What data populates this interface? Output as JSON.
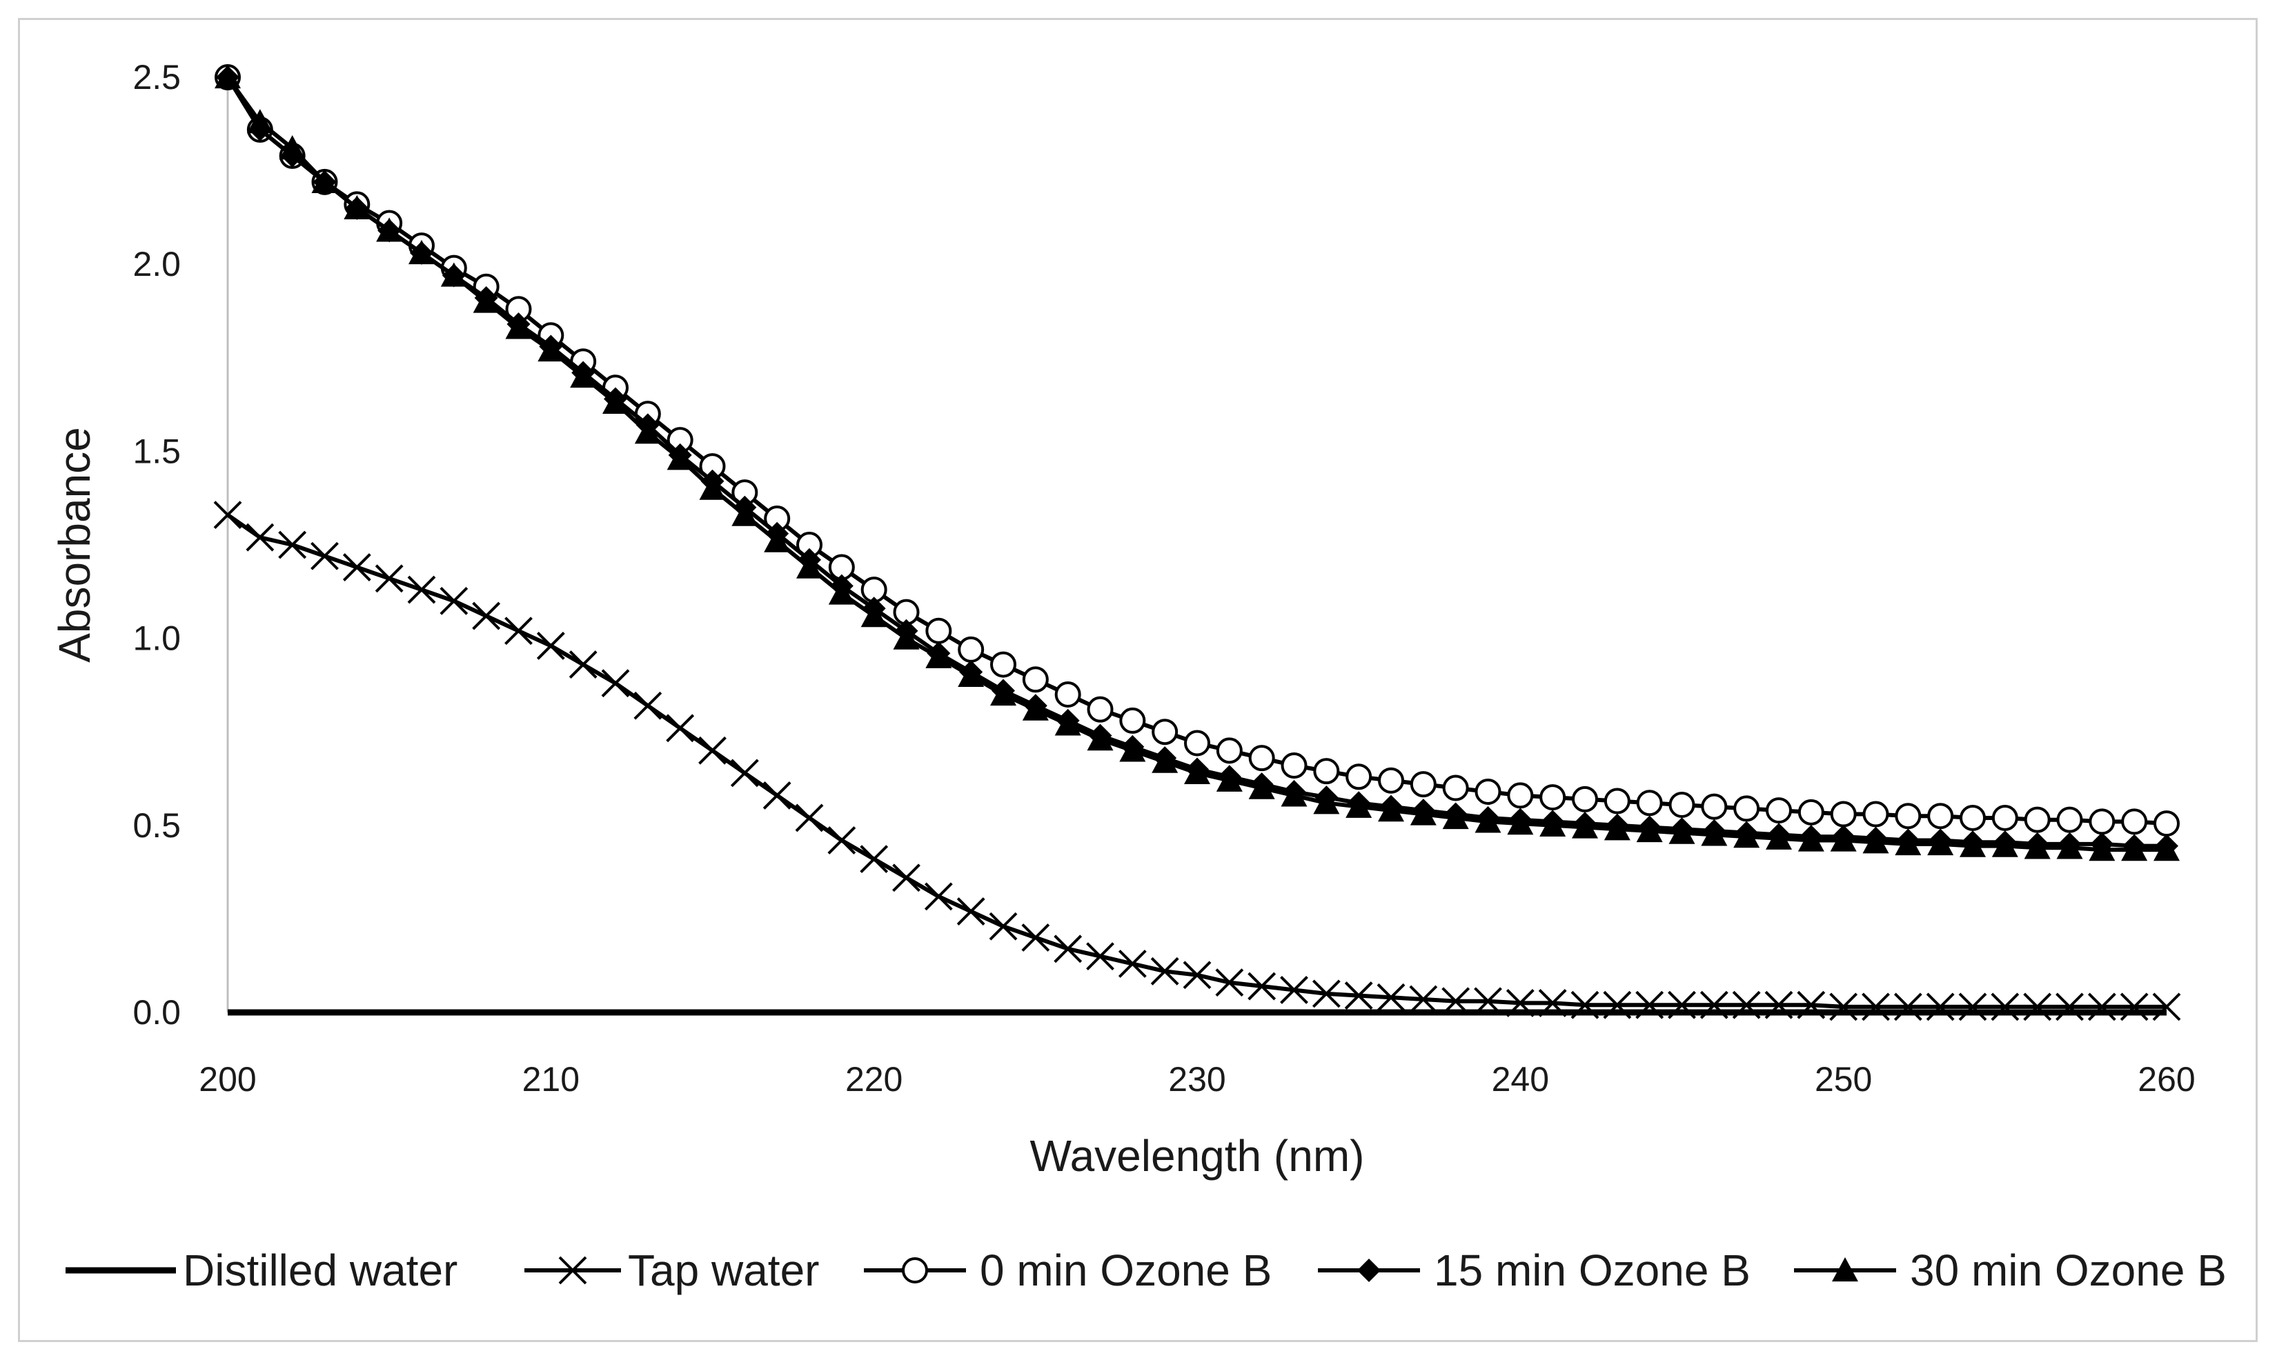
{
  "chart_data": {
    "type": "line",
    "title": "",
    "xlabel": "Wavelength (nm)",
    "ylabel": "Absorbance",
    "xlim": [
      200,
      260
    ],
    "ylim": [
      0,
      2.5
    ],
    "x_ticks": [
      200,
      210,
      220,
      230,
      240,
      250,
      260
    ],
    "x_tick_labels": [
      "200",
      "210",
      "220",
      "230",
      "240",
      "250",
      "260"
    ],
    "y_ticks": [
      0,
      0.5,
      1.0,
      1.5,
      2.0,
      2.5
    ],
    "y_tick_labels": [
      "0.0",
      "0.5",
      "1.0",
      "1.5",
      "2.0",
      "2.5"
    ],
    "grid": false,
    "legend_position": "bottom",
    "line_color": "#000000",
    "x": [
      200,
      201,
      202,
      203,
      204,
      205,
      206,
      207,
      208,
      209,
      210,
      211,
      212,
      213,
      214,
      215,
      216,
      217,
      218,
      219,
      220,
      221,
      222,
      223,
      224,
      225,
      226,
      227,
      228,
      229,
      230,
      231,
      232,
      233,
      234,
      235,
      236,
      237,
      238,
      239,
      240,
      241,
      242,
      243,
      244,
      245,
      246,
      247,
      248,
      249,
      250,
      251,
      252,
      253,
      254,
      255,
      256,
      257,
      258,
      259,
      260
    ],
    "series": [
      {
        "name": "Distilled water",
        "marker": "none",
        "values": [
          0,
          0,
          0,
          0,
          0,
          0,
          0,
          0,
          0,
          0,
          0,
          0,
          0,
          0,
          0,
          0,
          0,
          0,
          0,
          0,
          0,
          0,
          0,
          0,
          0,
          0,
          0,
          0,
          0,
          0,
          0,
          0,
          0,
          0,
          0,
          0,
          0,
          0,
          0,
          0,
          0,
          0,
          0,
          0,
          0,
          0,
          0,
          0,
          0,
          0,
          0,
          0,
          0,
          0,
          0,
          0,
          0,
          0,
          0,
          0,
          0
        ]
      },
      {
        "name": "Tap water",
        "marker": "x",
        "values": [
          1.33,
          1.27,
          1.25,
          1.22,
          1.19,
          1.16,
          1.13,
          1.1,
          1.06,
          1.02,
          0.98,
          0.93,
          0.88,
          0.82,
          0.76,
          0.7,
          0.64,
          0.58,
          0.52,
          0.46,
          0.41,
          0.36,
          0.31,
          0.27,
          0.23,
          0.2,
          0.17,
          0.15,
          0.13,
          0.11,
          0.1,
          0.08,
          0.07,
          0.06,
          0.05,
          0.045,
          0.04,
          0.035,
          0.03,
          0.03,
          0.025,
          0.025,
          0.02,
          0.02,
          0.02,
          0.02,
          0.02,
          0.02,
          0.02,
          0.02,
          0.015,
          0.015,
          0.015,
          0.015,
          0.015,
          0.015,
          0.015,
          0.015,
          0.015,
          0.015,
          0.015
        ]
      },
      {
        "name": "0 min Ozone B",
        "marker": "circle-open",
        "values": [
          2.5,
          2.36,
          2.29,
          2.22,
          2.16,
          2.11,
          2.05,
          1.99,
          1.94,
          1.88,
          1.81,
          1.74,
          1.67,
          1.6,
          1.53,
          1.46,
          1.39,
          1.32,
          1.25,
          1.19,
          1.13,
          1.07,
          1.02,
          0.97,
          0.93,
          0.89,
          0.85,
          0.81,
          0.78,
          0.75,
          0.72,
          0.7,
          0.68,
          0.66,
          0.645,
          0.63,
          0.62,
          0.61,
          0.6,
          0.59,
          0.58,
          0.575,
          0.57,
          0.565,
          0.56,
          0.555,
          0.55,
          0.545,
          0.54,
          0.535,
          0.53,
          0.53,
          0.525,
          0.525,
          0.52,
          0.52,
          0.515,
          0.515,
          0.51,
          0.51,
          0.505
        ]
      },
      {
        "name": "15 min Ozone B",
        "marker": "diamond",
        "values": [
          2.5,
          2.36,
          2.29,
          2.22,
          2.15,
          2.09,
          2.03,
          1.97,
          1.91,
          1.84,
          1.78,
          1.71,
          1.64,
          1.57,
          1.49,
          1.42,
          1.35,
          1.28,
          1.21,
          1.14,
          1.08,
          1.02,
          0.96,
          0.91,
          0.86,
          0.82,
          0.78,
          0.74,
          0.71,
          0.68,
          0.65,
          0.63,
          0.61,
          0.59,
          0.575,
          0.56,
          0.55,
          0.54,
          0.53,
          0.52,
          0.515,
          0.51,
          0.505,
          0.5,
          0.495,
          0.49,
          0.485,
          0.48,
          0.475,
          0.47,
          0.47,
          0.465,
          0.46,
          0.46,
          0.455,
          0.455,
          0.45,
          0.45,
          0.45,
          0.445,
          0.445
        ]
      },
      {
        "name": "30 min Ozone B",
        "marker": "triangle",
        "values": [
          2.5,
          2.38,
          2.31,
          2.22,
          2.15,
          2.09,
          2.03,
          1.97,
          1.9,
          1.83,
          1.77,
          1.7,
          1.63,
          1.55,
          1.48,
          1.4,
          1.33,
          1.26,
          1.19,
          1.12,
          1.06,
          1.0,
          0.95,
          0.9,
          0.85,
          0.81,
          0.77,
          0.73,
          0.7,
          0.67,
          0.64,
          0.62,
          0.6,
          0.58,
          0.56,
          0.55,
          0.54,
          0.53,
          0.52,
          0.51,
          0.505,
          0.5,
          0.495,
          0.49,
          0.485,
          0.48,
          0.475,
          0.47,
          0.465,
          0.46,
          0.46,
          0.455,
          0.45,
          0.45,
          0.445,
          0.445,
          0.44,
          0.44,
          0.435,
          0.435,
          0.435
        ]
      }
    ]
  }
}
